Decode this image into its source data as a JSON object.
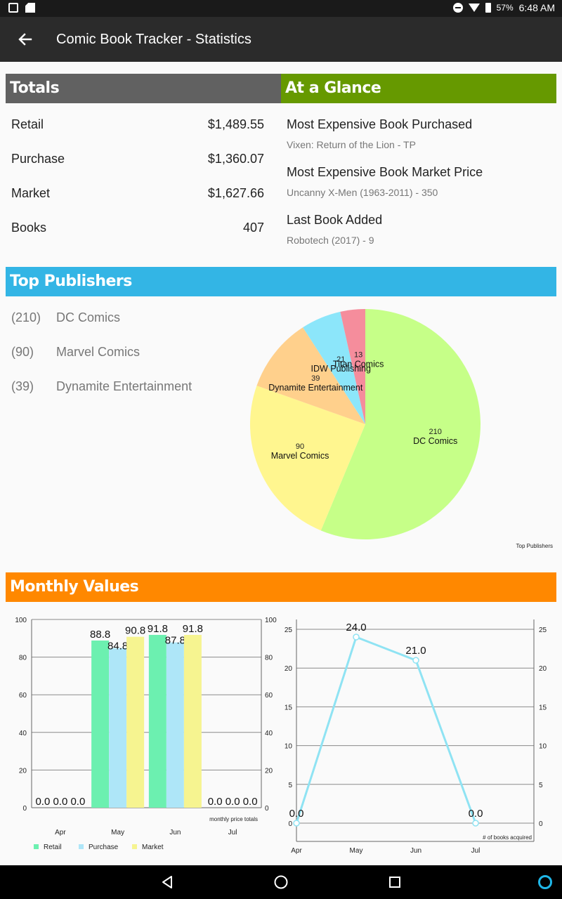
{
  "status_bar": {
    "battery": "57%",
    "time": "6:48 AM"
  },
  "app_bar": {
    "title": "Comic Book Tracker - Statistics"
  },
  "totals": {
    "header": "Totals",
    "rows": [
      {
        "label": "Retail",
        "value": "$1,489.55"
      },
      {
        "label": "Purchase",
        "value": "$1,360.07"
      },
      {
        "label": "Market",
        "value": "$1,627.66"
      },
      {
        "label": "Books",
        "value": "407"
      }
    ]
  },
  "glance": {
    "header": "At a Glance",
    "items": [
      {
        "label": "Most Expensive Book Purchased",
        "value": "Vixen: Return of the Lion - TP"
      },
      {
        "label": "Most Expensive Book Market Price",
        "value": "Uncanny X-Men (1963-2011) - 350"
      },
      {
        "label": "Last Book Added",
        "value": "Robotech (2017) - 9"
      }
    ]
  },
  "publishers": {
    "header": "Top Publishers",
    "list": [
      {
        "count": "(210)",
        "name": "DC Comics"
      },
      {
        "count": "(90)",
        "name": "Marvel Comics"
      },
      {
        "count": "(39)",
        "name": "Dynamite Entertainment"
      }
    ]
  },
  "monthly": {
    "header": "Monthly Values"
  },
  "colors": {
    "totals_header": "#616161",
    "glance_header": "#669900",
    "publishers_header": "#33b5e5",
    "monthly_header": "#ff8800",
    "retail": "#6cf0b0",
    "purchase": "#aee6f8",
    "market": "#f6f490",
    "line": "#8fe3f3"
  },
  "chart_data": [
    {
      "type": "pie",
      "description_label": "Top Publishers",
      "slices": [
        {
          "label": "DC Comics",
          "value": 210,
          "color": "#c6ff88"
        },
        {
          "label": "Marvel Comics",
          "value": 90,
          "color": "#fff68f"
        },
        {
          "label": "Dynamite Entertainment",
          "value": 39,
          "color": "#ffd08c"
        },
        {
          "label": "IDW Publishing",
          "value": 21,
          "color": "#8ce6fa"
        },
        {
          "label": "Titan Comics",
          "value": 13,
          "color": "#f58d9c"
        }
      ]
    },
    {
      "type": "bar",
      "description_label": "monthly price totals",
      "categories": [
        "Apr",
        "May",
        "Jun",
        "Jul"
      ],
      "series": [
        {
          "name": "Retail",
          "values": [
            0.0,
            88.8,
            91.8,
            0.0
          ]
        },
        {
          "name": "Purchase",
          "values": [
            0.0,
            84.8,
            87.8,
            0.0
          ]
        },
        {
          "name": "Market",
          "values": [
            0.0,
            90.8,
            91.8,
            0.0
          ]
        }
      ],
      "ylim": [
        0,
        100
      ],
      "yticks": [
        0,
        20,
        40,
        60,
        80,
        100
      ],
      "grid": true,
      "legend": "bottom-left"
    },
    {
      "type": "line",
      "description_label": "# of books acquired",
      "categories": [
        "Apr",
        "May",
        "Jun",
        "Jul"
      ],
      "values": [
        0.0,
        24.0,
        21.0,
        0.0
      ],
      "ylim": [
        0,
        25
      ],
      "yticks": [
        0,
        5,
        10,
        15,
        20,
        25
      ],
      "grid": true
    }
  ]
}
